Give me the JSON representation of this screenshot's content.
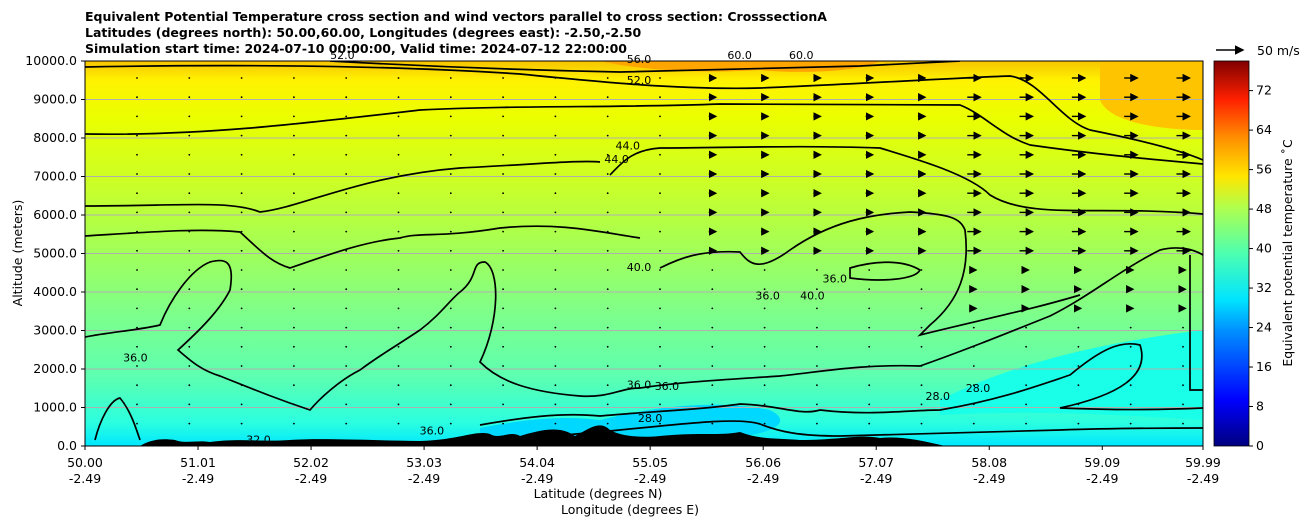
{
  "title_lines": [
    "Equivalent Potential Temperature cross section and wind vectors parallel to cross section: CrosssectionA",
    "Latitudes (degrees north): 50.00,60.00, Longitudes (degrees east): -2.50,-2.50",
    "Simulation start time: 2024-07-10 00:00:00, Valid time: 2024-07-12 22:00:00"
  ],
  "chart_data": {
    "type": "contour",
    "ylabel": "Altitude (meters)",
    "xlabel_lat": "Latitude (degrees N)",
    "xlabel_lon": "Longitude (degrees E)",
    "ylim": [
      0,
      10000
    ],
    "y_ticks": [
      "0.0",
      "1000.0",
      "2000.0",
      "3000.0",
      "4000.0",
      "5000.0",
      "6000.0",
      "7000.0",
      "8000.0",
      "9000.0",
      "10000.0"
    ],
    "x_ticks_lat": [
      "50.00",
      "51.01",
      "52.02",
      "53.03",
      "54.04",
      "55.05",
      "56.06",
      "57.07",
      "58.08",
      "59.09",
      "59.99"
    ],
    "x_ticks_lon": [
      "-2.49",
      "-2.49",
      "-2.49",
      "-2.49",
      "-2.49",
      "-2.49",
      "-2.49",
      "-2.49",
      "-2.49",
      "-2.49",
      "-2.49"
    ],
    "x_tick_values": [
      50.0,
      51.01,
      52.02,
      53.03,
      54.04,
      55.05,
      56.06,
      57.07,
      58.08,
      59.09,
      59.99
    ],
    "colorbar": {
      "label": "Equivalent potential temperature ˚C",
      "range": [
        0,
        78
      ],
      "ticks": [
        "0",
        "8",
        "16",
        "24",
        "32",
        "40",
        "48",
        "56",
        "64",
        "72"
      ],
      "tick_values": [
        0,
        8,
        16,
        24,
        32,
        40,
        48,
        56,
        64,
        72
      ]
    },
    "quiver_key": "50 m/s",
    "contour_levels": [
      28,
      32,
      36,
      40,
      44,
      48,
      52,
      56,
      60
    ],
    "contour_labels": [
      {
        "text": "56.0",
        "lat": 54.95,
        "alt": 9950
      },
      {
        "text": "52.0",
        "lat": 54.95,
        "alt": 9400
      },
      {
        "text": "60.0",
        "lat": 55.85,
        "alt": 10050
      },
      {
        "text": "60.0",
        "lat": 56.4,
        "alt": 10050
      },
      {
        "text": "52.0",
        "lat": 52.3,
        "alt": 10050
      },
      {
        "text": "44.0",
        "lat": 54.85,
        "alt": 7700
      },
      {
        "text": "44.0",
        "lat": 54.75,
        "alt": 7350
      },
      {
        "text": "40.0",
        "lat": 54.95,
        "alt": 4550
      },
      {
        "text": "36.0",
        "lat": 56.1,
        "alt": 3800
      },
      {
        "text": "40.0",
        "lat": 56.5,
        "alt": 3800
      },
      {
        "text": "36.0",
        "lat": 56.7,
        "alt": 4250
      },
      {
        "text": "36.0",
        "lat": 50.45,
        "alt": 2200
      },
      {
        "text": "36.0",
        "lat": 54.95,
        "alt": 1500
      },
      {
        "text": "36.0",
        "lat": 55.2,
        "alt": 1450
      },
      {
        "text": "28.0",
        "lat": 55.05,
        "alt": 620
      },
      {
        "text": "28.0",
        "lat": 57.62,
        "alt": 1200
      },
      {
        "text": "28.0",
        "lat": 57.98,
        "alt": 1400
      },
      {
        "text": "32.0",
        "lat": 51.55,
        "alt": 60
      },
      {
        "text": "36.0",
        "lat": 53.1,
        "alt": 300
      }
    ],
    "wind_vectors_m_s": [
      {
        "region": "lat 50.0-54.5, all altitudes",
        "u": 0.5
      },
      {
        "region": "lat 55.5-57.5, 5000-9500 m",
        "u": 6
      },
      {
        "region": "lat 57.5-60.0, 5000-10000 m",
        "u": 11
      }
    ]
  }
}
